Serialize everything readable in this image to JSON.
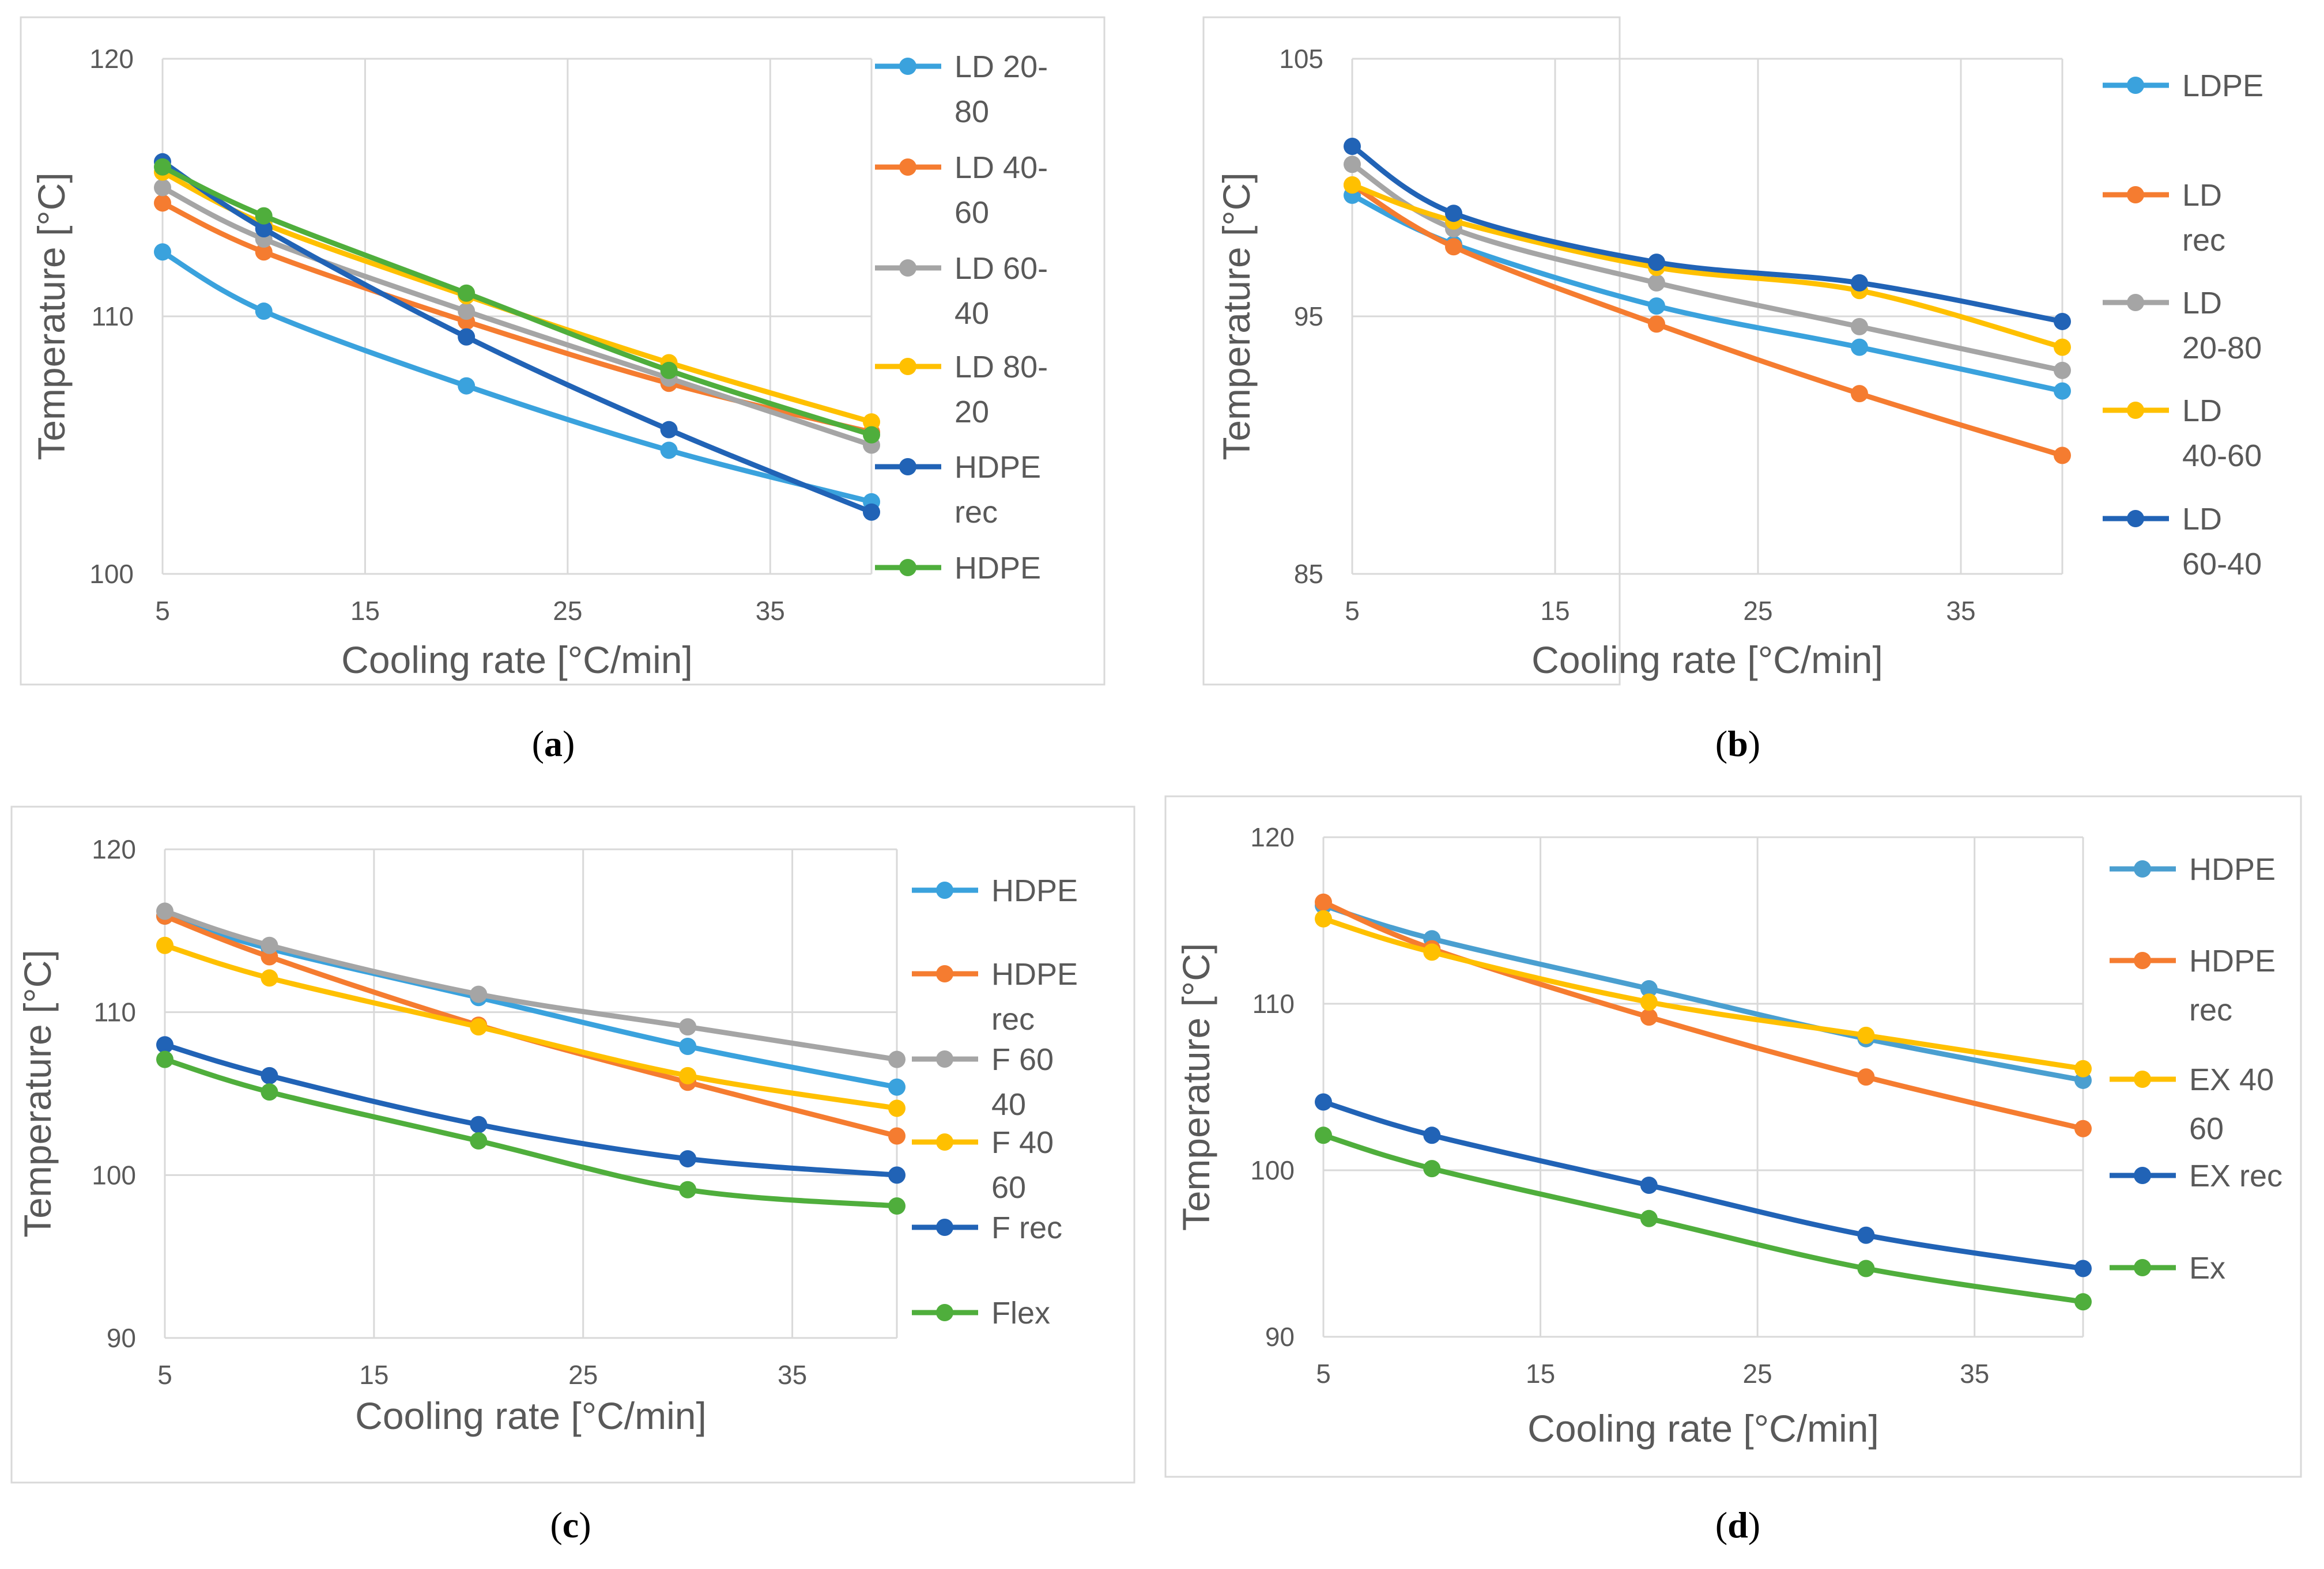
{
  "chart_data": [
    {
      "type": "line",
      "caption": "a",
      "xlabel": "Cooling rate [°C/min]",
      "ylabel": "Temperature [°C]",
      "xlim": [
        5,
        40
      ],
      "ylim": [
        100,
        120
      ],
      "xticks": [
        5,
        15,
        25,
        35
      ],
      "yticks": [
        100,
        110,
        120
      ],
      "grid": true,
      "legend_position": "right",
      "x": [
        5,
        10,
        20,
        30,
        40
      ],
      "series": [
        {
          "name": "LD 20-",
          "name2": "80",
          "color": "#3aa2dd",
          "values": [
            112.5,
            110.2,
            107.3,
            104.8,
            102.8
          ]
        },
        {
          "name": "LD 40-",
          "name2": "60",
          "color": "#f57c30",
          "values": [
            114.4,
            112.5,
            109.8,
            107.4,
            105.5
          ]
        },
        {
          "name": "LD 60-",
          "name2": "40",
          "color": "#a5a5a5",
          "values": [
            115.0,
            113.0,
            110.2,
            107.6,
            105.0
          ]
        },
        {
          "name": "LD 80-",
          "name2": "20",
          "color": "#ffc000",
          "values": [
            115.6,
            113.6,
            110.8,
            108.2,
            105.9
          ]
        },
        {
          "name": "HDPE",
          "name2": "rec",
          "color": "#2163b6",
          "values": [
            116.0,
            113.4,
            109.2,
            105.6,
            102.4
          ]
        },
        {
          "name": "HDPE",
          "name2": "",
          "color": "#4fae3c",
          "values": [
            115.8,
            113.9,
            110.9,
            107.9,
            105.4
          ]
        }
      ]
    },
    {
      "type": "line",
      "caption": "b",
      "xlabel": "Cooling rate [°C/min]",
      "ylabel": "Temperature [°C]",
      "xlim": [
        5,
        40
      ],
      "ylim": [
        85,
        105
      ],
      "xticks": [
        5,
        15,
        25,
        35
      ],
      "yticks": [
        85,
        95,
        105
      ],
      "grid": true,
      "legend_position": "right",
      "x": [
        5,
        10,
        20,
        30,
        40
      ],
      "series": [
        {
          "name": "LDPE",
          "name2": "",
          "color": "#3aa2dd",
          "values": [
            99.7,
            97.8,
            95.4,
            93.8,
            92.1
          ]
        },
        {
          "name": "LD",
          "name2": "rec",
          "color": "#f57c30",
          "values": [
            100.1,
            97.7,
            94.7,
            92.0,
            89.6
          ]
        },
        {
          "name": "LD",
          "name2": "20-80",
          "color": "#a5a5a5",
          "values": [
            100.9,
            98.4,
            96.3,
            94.6,
            92.9
          ]
        },
        {
          "name": "LD",
          "name2": "40-60",
          "color": "#ffc000",
          "values": [
            100.1,
            98.7,
            96.9,
            96.0,
            93.8
          ]
        },
        {
          "name": "LD",
          "name2": "60-40",
          "color": "#2163b6",
          "values": [
            101.6,
            99.0,
            97.1,
            96.3,
            94.8
          ]
        }
      ]
    },
    {
      "type": "line",
      "caption": "c",
      "xlabel": "Cooling rate [°C/min]",
      "ylabel": "Temperature [°C]",
      "xlim": [
        5,
        40
      ],
      "ylim": [
        90,
        120
      ],
      "xticks": [
        5,
        15,
        25,
        35
      ],
      "yticks": [
        90,
        100,
        110,
        120
      ],
      "grid": true,
      "legend_position": "right",
      "x": [
        5,
        10,
        20,
        30,
        40
      ],
      "series": [
        {
          "name": "HDPE",
          "name2": "",
          "color": "#3aa2dd",
          "values": [
            115.9,
            113.9,
            110.9,
            107.9,
            105.4
          ]
        },
        {
          "name": "HDPE",
          "name2": "rec",
          "color": "#f57c30",
          "values": [
            115.9,
            113.4,
            109.2,
            105.7,
            102.4
          ]
        },
        {
          "name": "F 60",
          "name2": "40",
          "color": "#a5a5a5",
          "values": [
            116.2,
            114.1,
            111.1,
            109.1,
            107.1
          ]
        },
        {
          "name": "F 40",
          "name2": "60",
          "color": "#ffc000",
          "values": [
            114.1,
            112.1,
            109.1,
            106.1,
            104.1
          ]
        },
        {
          "name": "F rec",
          "name2": "",
          "color": "#2163b6",
          "values": [
            108.0,
            106.1,
            103.1,
            101.0,
            100.0
          ]
        },
        {
          "name": "Flex",
          "name2": "",
          "color": "#4fae3c",
          "values": [
            107.1,
            105.1,
            102.1,
            99.1,
            98.1
          ]
        }
      ]
    },
    {
      "type": "line",
      "caption": "d",
      "xlabel": "Cooling rate [°C/min]",
      "ylabel": "Temperature [°C]",
      "xlim": [
        5,
        40
      ],
      "ylim": [
        90,
        120
      ],
      "xticks": [
        5,
        15,
        25,
        35
      ],
      "yticks": [
        90,
        100,
        110,
        120
      ],
      "grid": true,
      "legend_position": "right",
      "x": [
        5,
        10,
        20,
        30,
        40
      ],
      "series": [
        {
          "name": "HDPE",
          "name2": "",
          "color": "#4a9fd0",
          "values": [
            115.9,
            113.9,
            110.9,
            107.9,
            105.4
          ]
        },
        {
          "name": "HDPE",
          "name2": "rec",
          "color": "#f57c30",
          "values": [
            116.1,
            113.3,
            109.2,
            105.6,
            102.5
          ]
        },
        {
          "name": "EX 40",
          "name2": "60",
          "color": "#ffc000",
          "values": [
            115.1,
            113.1,
            110.1,
            108.1,
            106.1
          ]
        },
        {
          "name": "EX rec",
          "name2": "",
          "color": "#2163b6",
          "values": [
            104.1,
            102.1,
            99.1,
            96.1,
            94.1
          ]
        },
        {
          "name": "Ex",
          "name2": "",
          "color": "#4fae3c",
          "values": [
            102.1,
            100.1,
            97.1,
            94.1,
            92.1
          ]
        }
      ]
    }
  ]
}
